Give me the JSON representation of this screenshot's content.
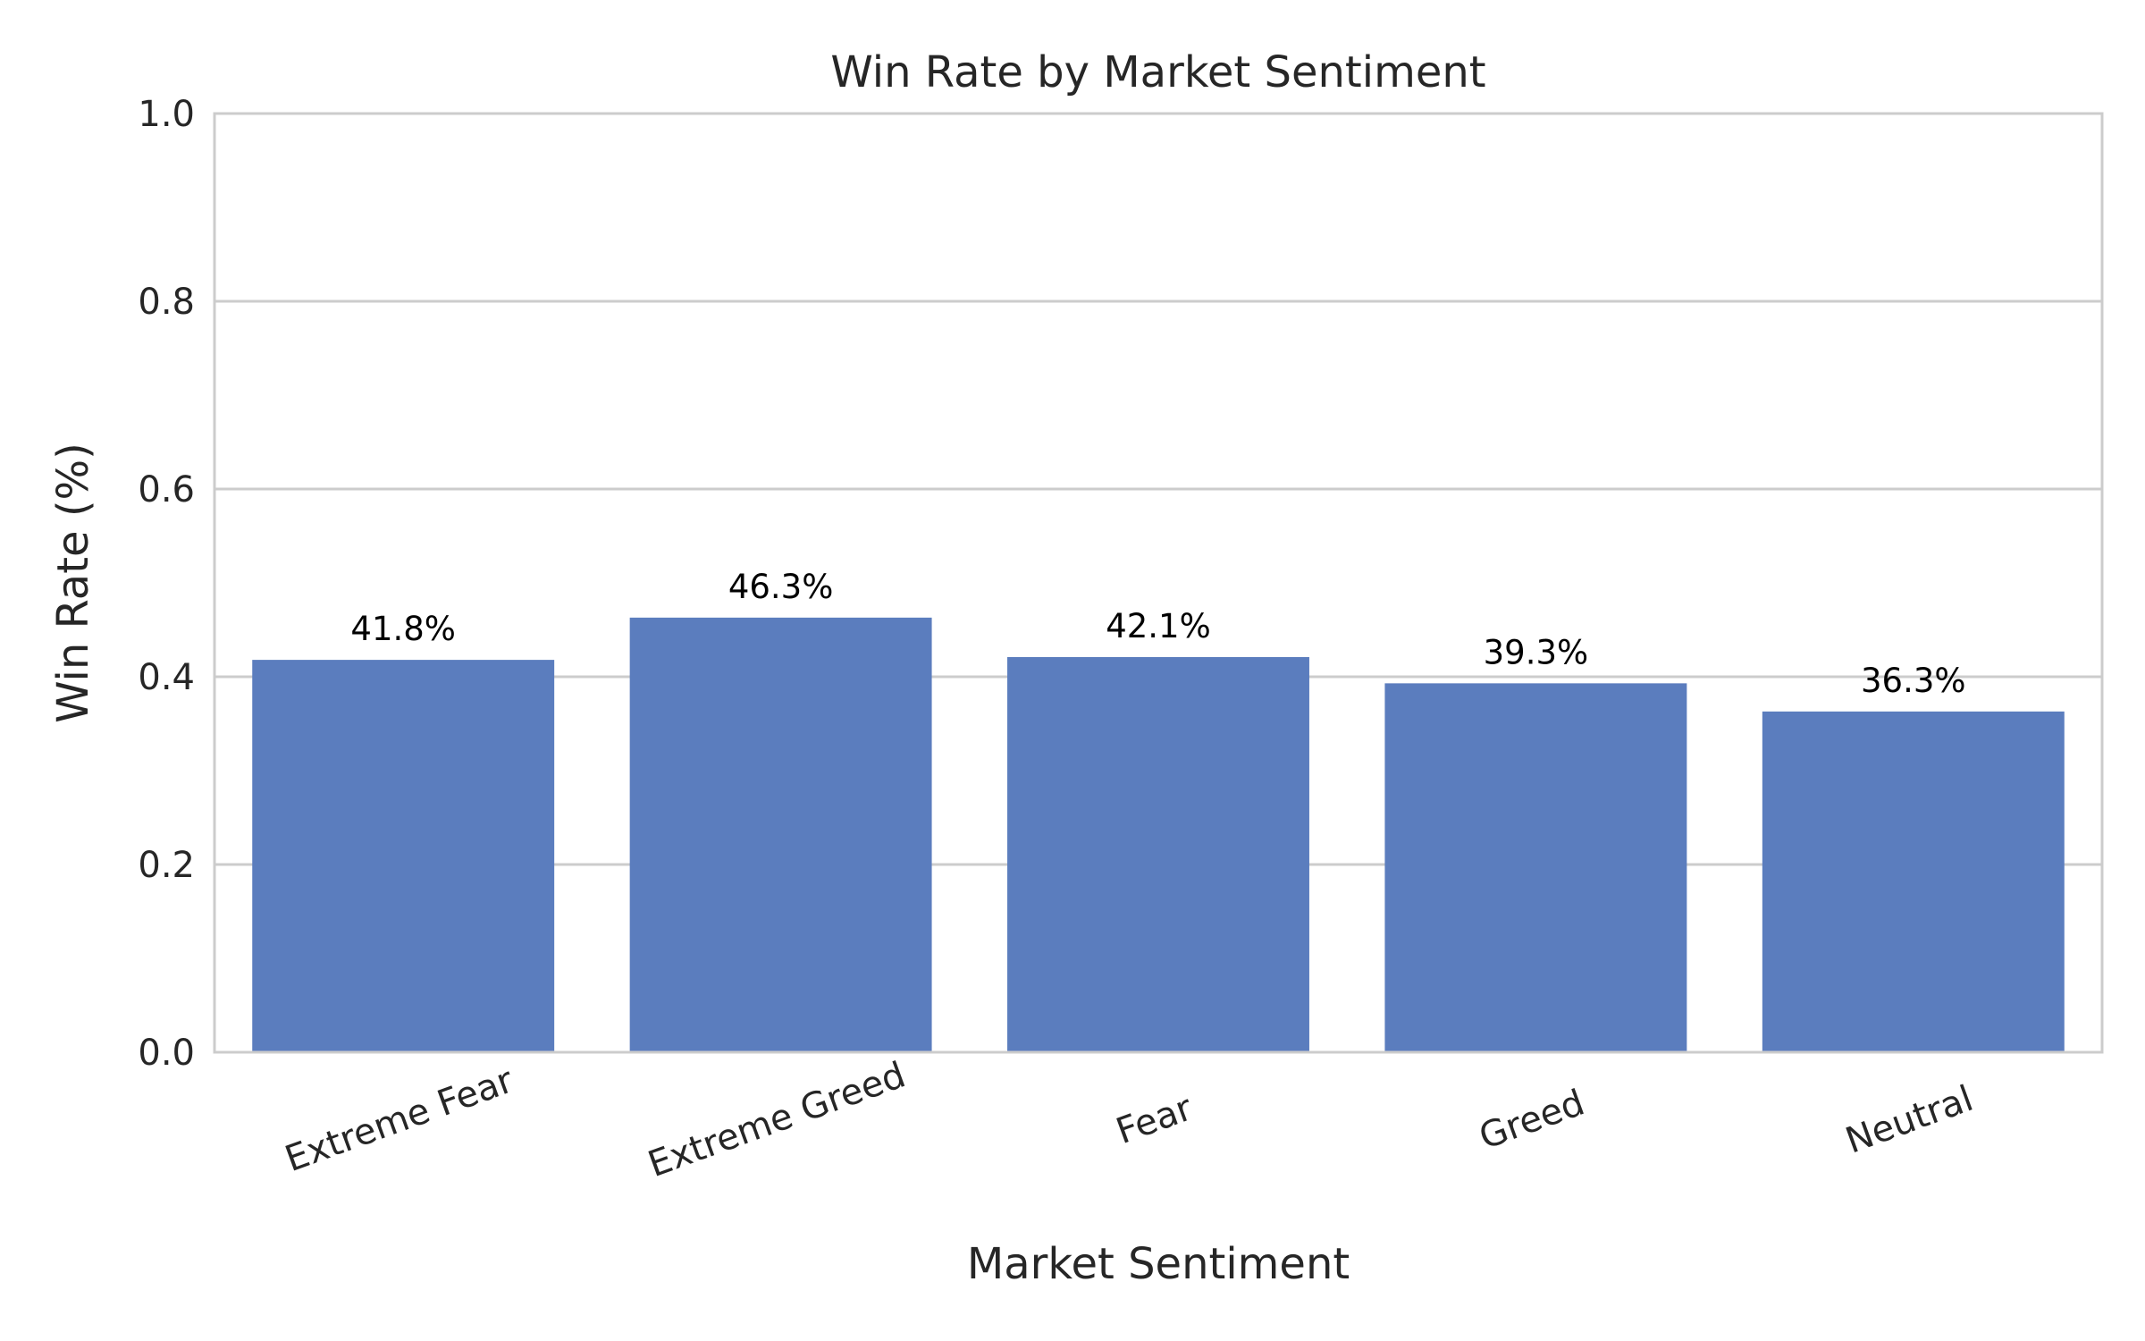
{
  "chart_data": {
    "type": "bar",
    "title": "Win Rate by Market Sentiment",
    "xlabel": "Market Sentiment",
    "ylabel": "Win Rate (%)",
    "categories": [
      "Extreme Fear",
      "Extreme Greed",
      "Fear",
      "Greed",
      "Neutral"
    ],
    "values": [
      0.418,
      0.463,
      0.421,
      0.393,
      0.363
    ],
    "data_labels": [
      "41.8%",
      "46.3%",
      "42.1%",
      "39.3%",
      "36.3%"
    ],
    "ylim": [
      0,
      1.0
    ],
    "yticks": [
      0.0,
      0.2,
      0.4,
      0.6,
      0.8,
      1.0
    ],
    "ytick_labels": [
      "0.0",
      "0.2",
      "0.4",
      "0.6",
      "0.8",
      "1.0"
    ],
    "grid": true,
    "bar_color": "#5b7dbe",
    "grid_color": "#cccccc",
    "text_color": "#262626"
  }
}
